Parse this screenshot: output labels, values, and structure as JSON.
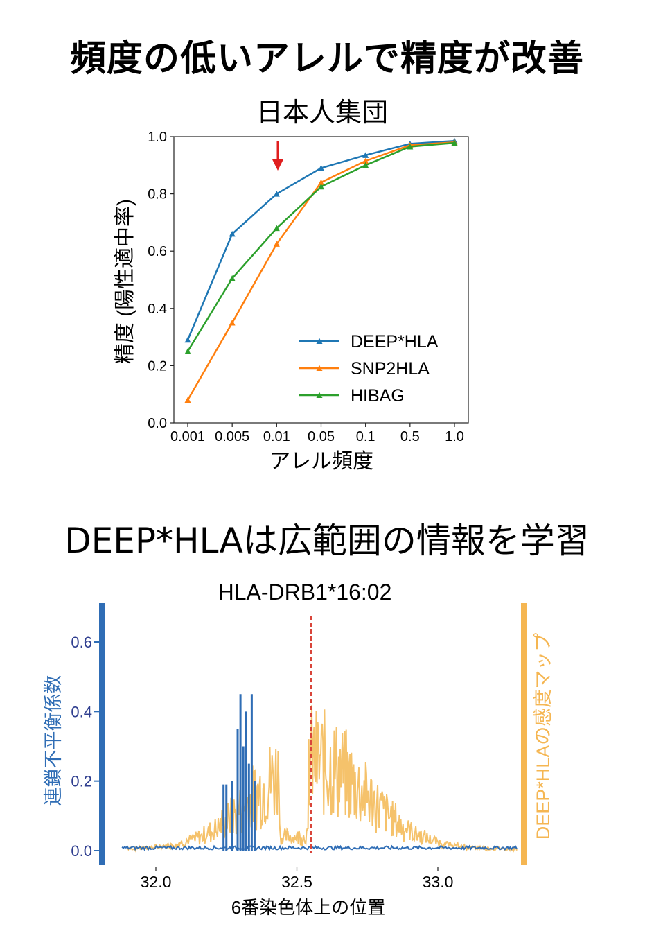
{
  "heading_top": "頻度の低いアレルで精度が改善",
  "heading_bottom": "DEEP*HLAは広範囲の情報を学習",
  "chart_data": [
    {
      "type": "line",
      "title": "日本人集団",
      "xlabel": "アレル頻度",
      "ylabel": "精度 (陽性適中率)",
      "categories": [
        "0.001",
        "0.005",
        "0.01",
        "0.05",
        "0.1",
        "0.5",
        "1.0"
      ],
      "ylim": [
        0,
        1.0
      ],
      "yticks": [
        "0.0",
        "0.2",
        "0.4",
        "0.6",
        "0.8",
        "1.0"
      ],
      "highlight_category": "0.01",
      "legend_position": "bottom-right",
      "series": [
        {
          "name": "DEEP*HLA",
          "color": "#1f77b4",
          "values": [
            0.29,
            0.66,
            0.8,
            0.89,
            0.935,
            0.975,
            0.985
          ]
        },
        {
          "name": "SNP2HLA",
          "color": "#ff7f0e",
          "values": [
            0.08,
            0.35,
            0.625,
            0.84,
            0.915,
            0.97,
            0.98
          ]
        },
        {
          "name": "HIBAG",
          "color": "#2ca02c",
          "values": [
            0.25,
            0.505,
            0.68,
            0.825,
            0.9,
            0.965,
            0.978
          ]
        }
      ]
    },
    {
      "type": "line",
      "title": "HLA-DRB1*16:02",
      "xlabel": "6番染色体上の位置",
      "ylabel_left": "連鎖不平衡係数",
      "ylabel_right": "DEEP*HLAの感度マップ",
      "xlim": [
        31.86,
        33.3
      ],
      "xticks": [
        "32.0",
        "32.5",
        "33.0"
      ],
      "ylim": [
        -0.03,
        0.7
      ],
      "yticks": [
        "0.0",
        "0.2",
        "0.4",
        "0.6"
      ],
      "marker_line_x": 32.55,
      "series": [
        {
          "name": "連鎖不平衡係数",
          "color": "#2f6db5",
          "spikes": [
            [
              32.24,
              0.19
            ],
            [
              32.25,
              0.19
            ],
            [
              32.27,
              0.2
            ],
            [
              32.29,
              0.35
            ],
            [
              32.3,
              0.45
            ],
            [
              32.31,
              0.3
            ],
            [
              32.32,
              0.4
            ],
            [
              32.33,
              0.25
            ],
            [
              32.34,
              0.45
            ],
            [
              32.35,
              0.2
            ]
          ]
        },
        {
          "name": "DEEP*HLAの感度マップ",
          "color": "#f5c26b",
          "x_range": [
            31.9,
            33.28
          ],
          "peak_x": 32.55,
          "peak_height": 0.42
        }
      ]
    }
  ]
}
